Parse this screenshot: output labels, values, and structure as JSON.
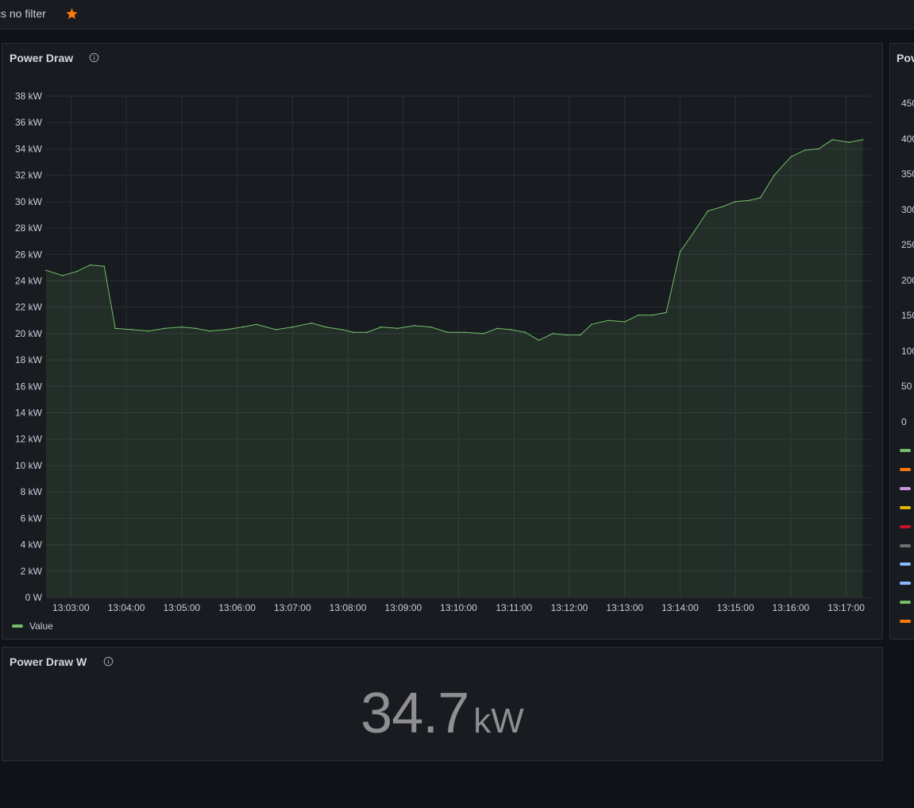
{
  "dashboard": {
    "title": "cs no filter"
  },
  "power_draw_panel": {
    "title": "Power Draw",
    "legend": "Value"
  },
  "chart_data": {
    "type": "area",
    "x_label_ticks": [
      "13:03:00",
      "13:04:00",
      "13:05:00",
      "13:06:00",
      "13:07:00",
      "13:08:00",
      "13:09:00",
      "13:10:00",
      "13:11:00",
      "13:12:00",
      "13:13:00",
      "13:14:00",
      "13:15:00",
      "13:16:00",
      "13:17:00"
    ],
    "y_ticks": [
      "0 W",
      "2 kW",
      "4 kW",
      "6 kW",
      "8 kW",
      "10 kW",
      "12 kW",
      "14 kW",
      "16 kW",
      "18 kW",
      "20 kW",
      "22 kW",
      "24 kW",
      "26 kW",
      "28 kW",
      "30 kW",
      "32 kW",
      "34 kW",
      "36 kW",
      "38 kW"
    ],
    "ylim": [
      0,
      38
    ],
    "x_unit": "minutes after 13:00:00",
    "series": [
      {
        "name": "Value",
        "color": "#73bf69",
        "x": [
          2.55,
          2.85,
          3.1,
          3.35,
          3.6,
          3.8,
          4.1,
          4.4,
          4.7,
          5.0,
          5.25,
          5.5,
          5.8,
          6.1,
          6.35,
          6.7,
          7.0,
          7.35,
          7.6,
          7.9,
          8.1,
          8.35,
          8.6,
          8.9,
          9.2,
          9.5,
          9.8,
          10.1,
          10.45,
          10.7,
          10.95,
          11.2,
          11.45,
          11.7,
          11.95,
          12.2,
          12.4,
          12.7,
          13.0,
          13.25,
          13.5,
          13.75,
          14.0,
          14.25,
          14.5,
          14.75,
          15.0,
          15.25,
          15.45,
          15.7,
          16.0,
          16.25,
          16.5,
          16.75,
          17.05,
          17.3
        ],
        "values": [
          24.8,
          24.4,
          24.7,
          25.2,
          25.1,
          20.4,
          20.3,
          20.2,
          20.4,
          20.5,
          20.4,
          20.2,
          20.3,
          20.5,
          20.7,
          20.3,
          20.5,
          20.8,
          20.5,
          20.3,
          20.1,
          20.1,
          20.5,
          20.4,
          20.6,
          20.5,
          20.1,
          20.1,
          20.0,
          20.4,
          20.3,
          20.1,
          19.5,
          20.0,
          19.9,
          19.9,
          20.7,
          21.0,
          20.9,
          21.4,
          21.4,
          21.6,
          26.2,
          27.7,
          29.3,
          29.6,
          30.0,
          30.1,
          30.3,
          32.0,
          33.4,
          33.9,
          34.0,
          34.7,
          34.5,
          34.7
        ]
      }
    ]
  },
  "power_draw_w_panel": {
    "title": "Power Draw W",
    "value": "34.7",
    "unit": "kW"
  },
  "right_panel": {
    "title": "Pov",
    "ticks": [
      "450",
      "400",
      "350",
      "300",
      "250",
      "200",
      "150",
      "100",
      "50",
      "0"
    ],
    "legend_colors": [
      "#73bf69",
      "#ff780a",
      "#ca95e5",
      "#e0b400",
      "#c4162a",
      "#6e6e73",
      "#8ab8ff",
      "#8ab8ff",
      "#73bf69",
      "#ff780a"
    ]
  },
  "colors": {
    "accent_star": "#ff780a",
    "series": "#73bf69"
  }
}
